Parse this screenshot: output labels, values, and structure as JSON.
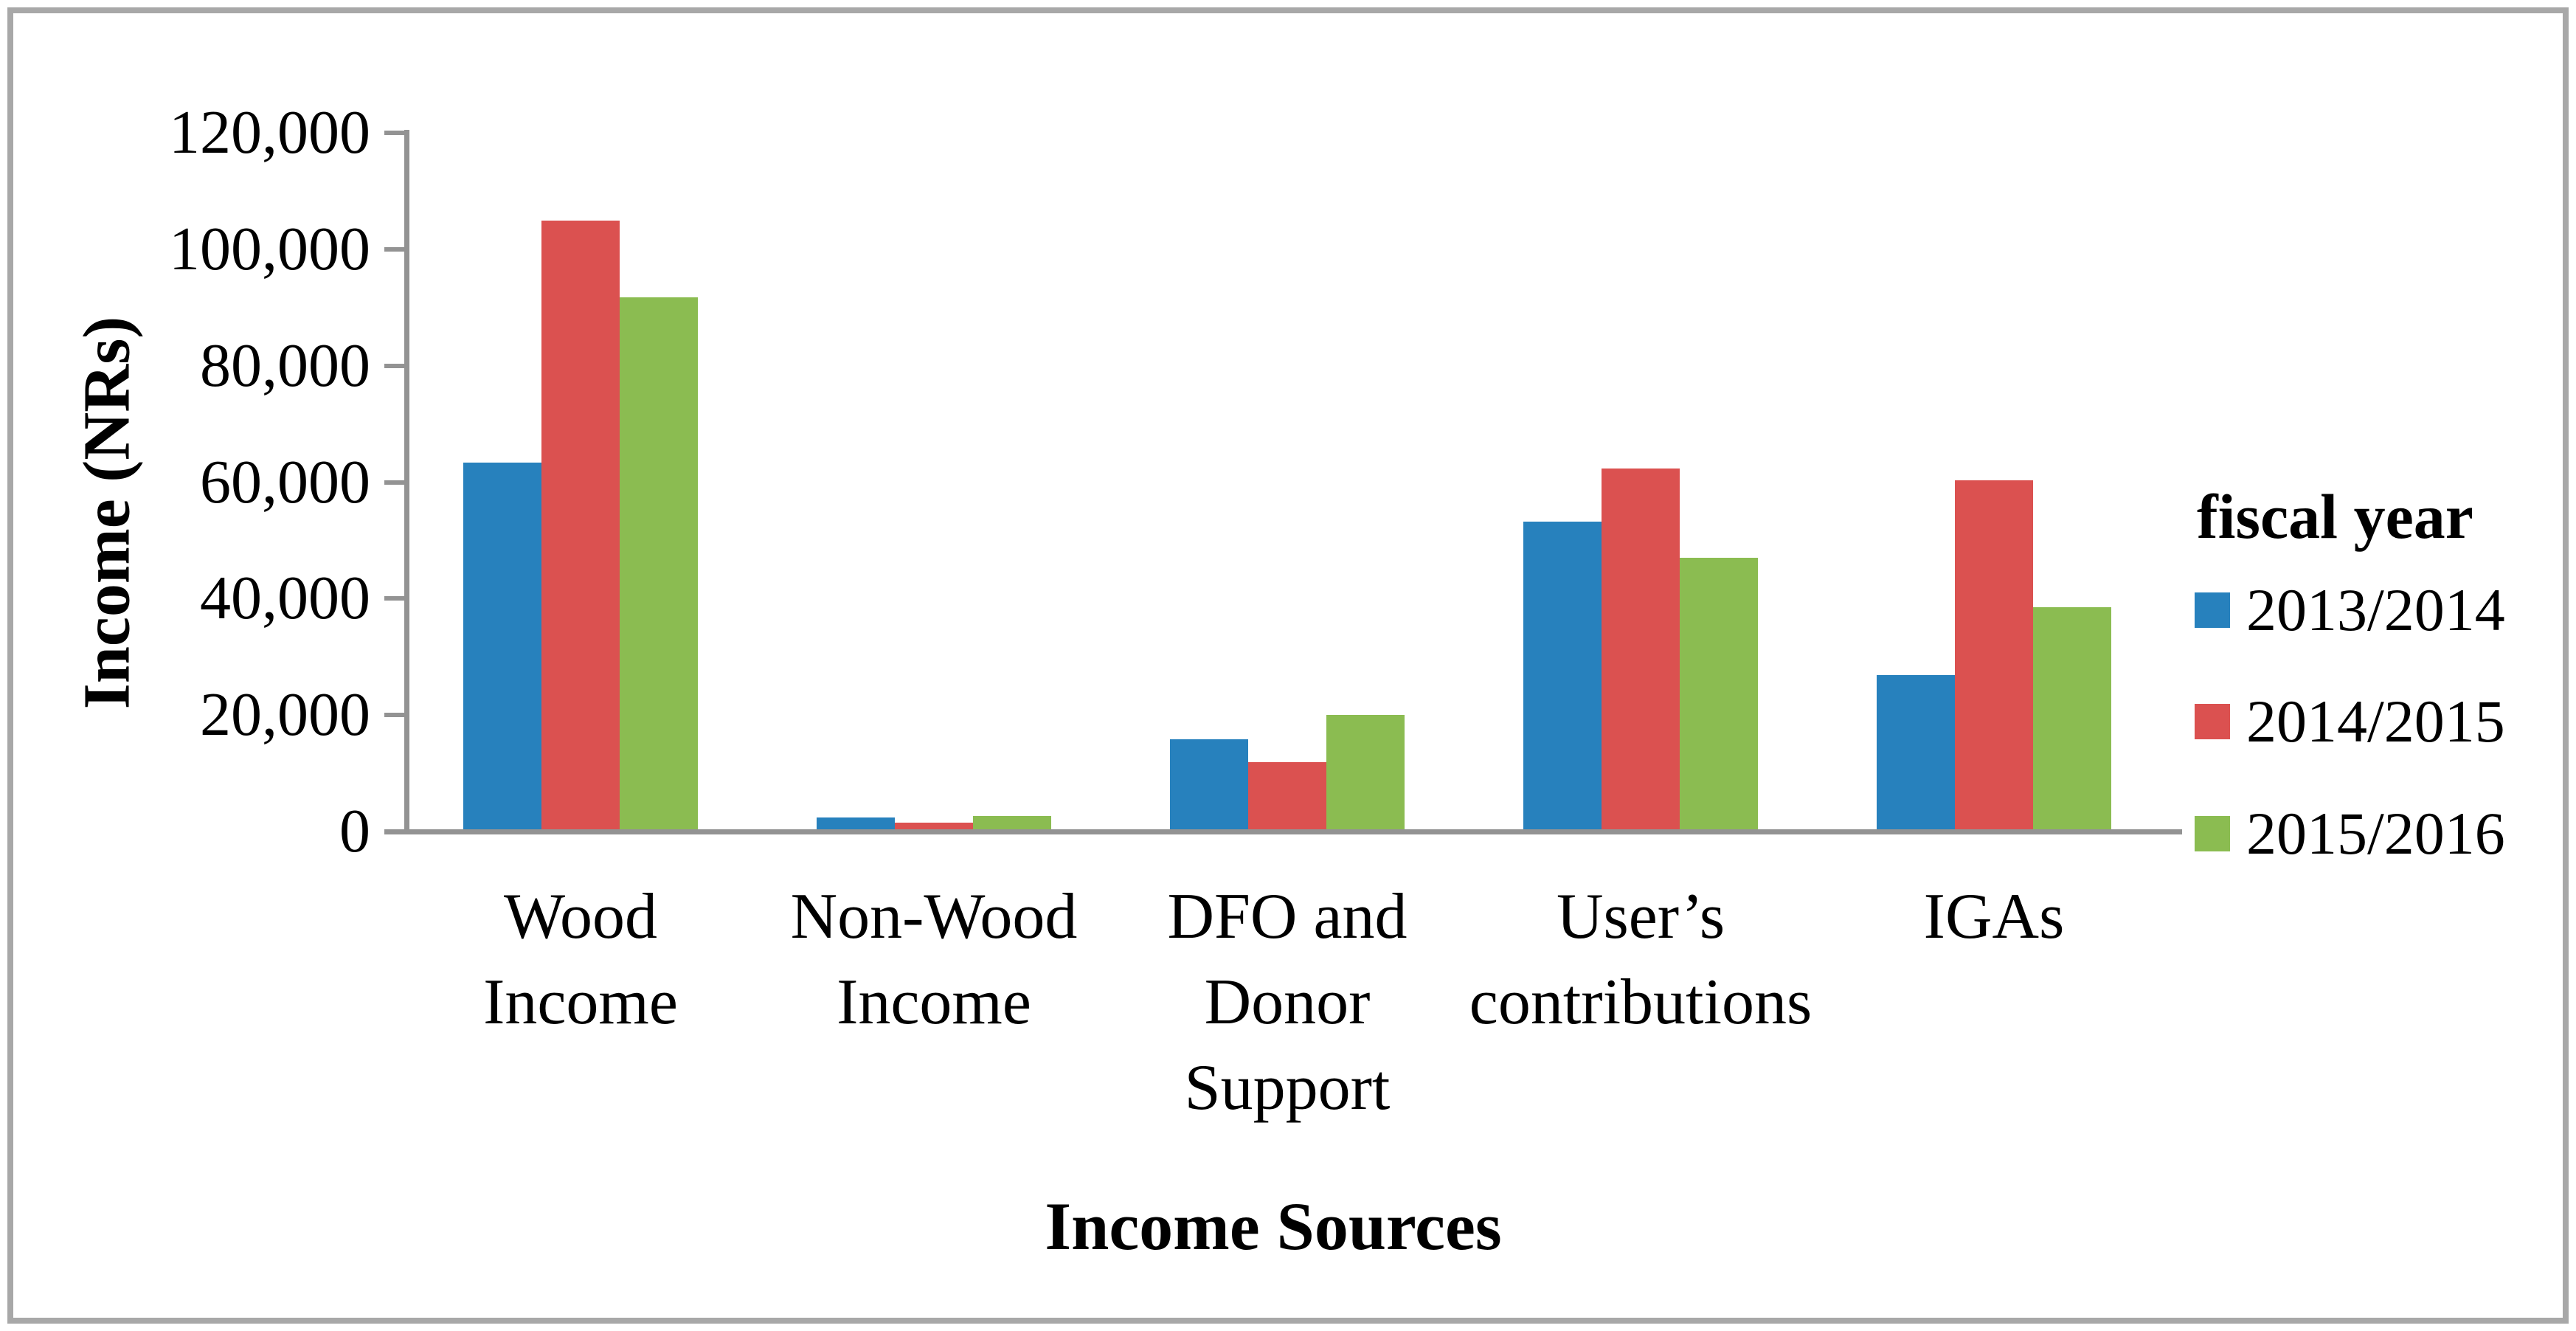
{
  "chart_data": {
    "type": "bar",
    "title": "",
    "ylabel": "Income (NRs)",
    "xlabel": "Income Sources",
    "legend_title": "fiscal year",
    "legend_position": "right",
    "grid": false,
    "ylim": [
      0,
      120000
    ],
    "ytick_step": 20000,
    "y_tick_labels": [
      "0",
      "20,000",
      "40,000",
      "60,000",
      "80,000",
      "100,000",
      "120,000"
    ],
    "categories": [
      "Wood Income",
      "Non-Wood Income",
      "DFO and Donor Support",
      "User’s contributions",
      "IGAs"
    ],
    "category_label_lines": [
      [
        "Wood",
        "Income"
      ],
      [
        "Non-Wood",
        "Income"
      ],
      [
        "DFO and",
        "Donor",
        "Support"
      ],
      [
        "User’s",
        "contributions"
      ],
      [
        "IGAs"
      ]
    ],
    "series": [
      {
        "name": "2013/2014",
        "color": "#2781BD",
        "values": [
          63000,
          2000,
          15500,
          52800,
          26500
        ]
      },
      {
        "name": "2014/2015",
        "color": "#DB5150",
        "values": [
          104500,
          1200,
          11500,
          62000,
          59900
        ]
      },
      {
        "name": "2015/2016",
        "color": "#8BBC51",
        "values": [
          91300,
          2300,
          19600,
          46600,
          38100
        ]
      }
    ],
    "axis_color": "#939393",
    "frame_color": "#A8A8A8"
  }
}
